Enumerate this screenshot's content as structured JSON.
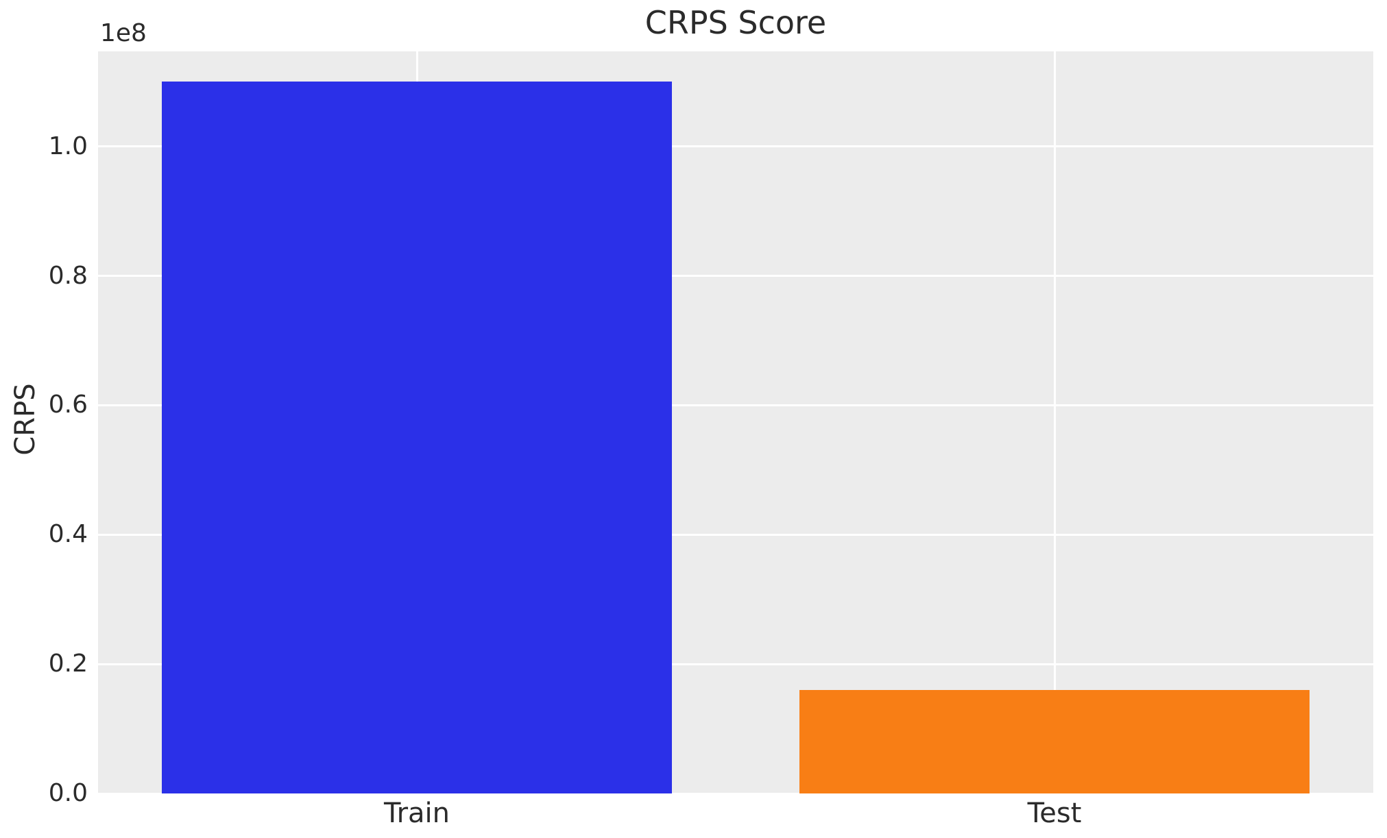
{
  "figure": {
    "title": "CRPS Score",
    "ylabel": "CRPS",
    "offset_text": "1e8",
    "background_color": "#ffffff",
    "plot_background_color": "#ececec",
    "gridline_color": "#ffffff",
    "text_color": "#2b2b2b"
  },
  "chart_data": {
    "type": "bar",
    "title": "CRPS Score",
    "xlabel": "",
    "ylabel": "CRPS",
    "categories": [
      "Train",
      "Test"
    ],
    "values": [
      110000000,
      16000000
    ],
    "bar_colors": [
      "#2b30e8",
      "#f87e15"
    ],
    "offset_text": "1e8",
    "ylim": [
      0,
      114700000
    ],
    "yticks": [
      0,
      20000000,
      40000000,
      60000000,
      80000000,
      100000000
    ],
    "ytick_labels": [
      "0.0",
      "0.2",
      "0.4",
      "0.6",
      "0.8",
      "1.0"
    ],
    "grid": true,
    "legend": false,
    "bar_width_fraction": 0.8
  }
}
